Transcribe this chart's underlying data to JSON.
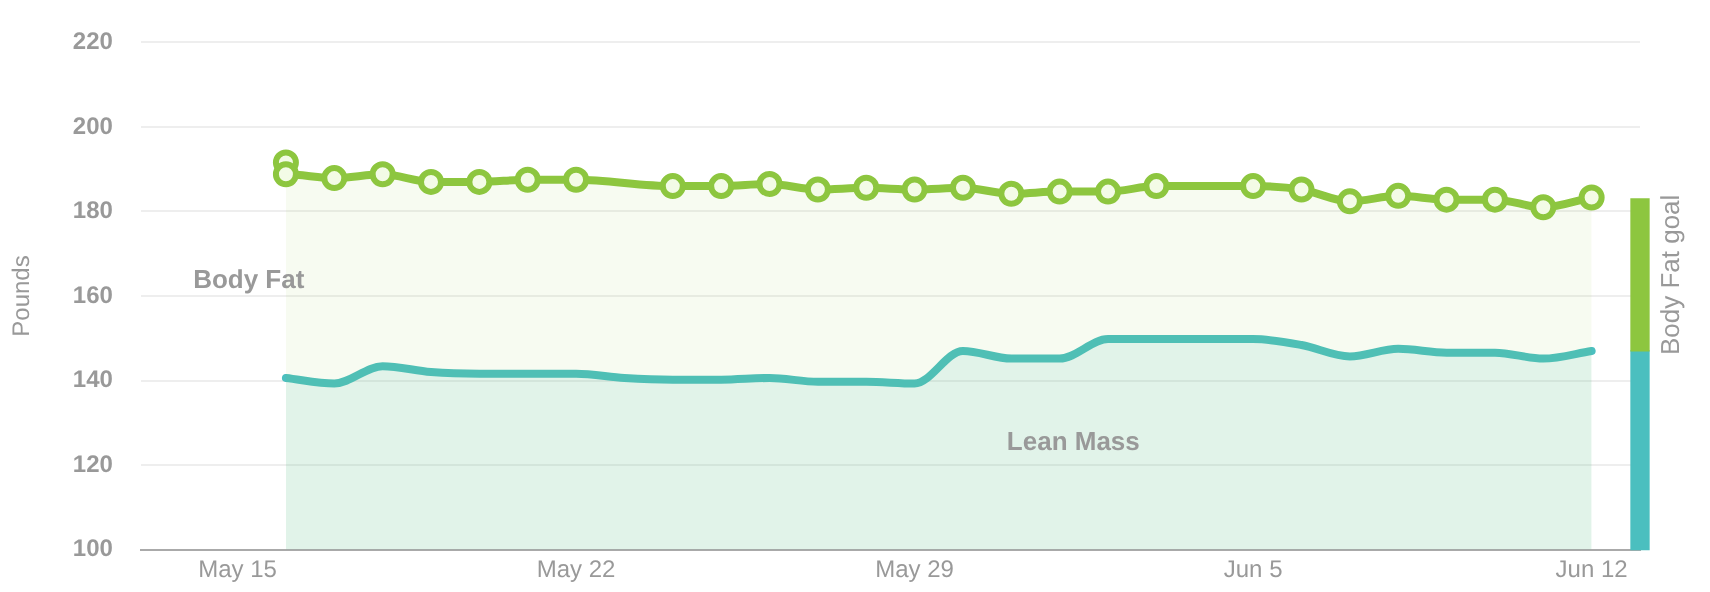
{
  "chart_data": {
    "type": "area",
    "ylabel": "Pounds",
    "xlim": [
      "--05-13",
      "--06-13"
    ],
    "xticks": [
      {
        "value": "--05-15",
        "label": "May 15"
      },
      {
        "value": "--05-22",
        "label": "May 22"
      },
      {
        "value": "--05-29",
        "label": "May 29"
      },
      {
        "value": "--06-05",
        "label": "Jun 5"
      },
      {
        "value": "--06-12",
        "label": "Jun 12"
      }
    ],
    "ylim": [
      100,
      220
    ],
    "yticks": [
      100,
      120,
      140,
      160,
      180,
      200,
      220
    ],
    "grid": "y",
    "legend": false,
    "series": [
      {
        "name": "Body Fat",
        "color": "#8dc63f",
        "marker": "circle",
        "x": [
          "--05-16",
          "--05-16",
          "--05-17",
          "--05-18",
          "--05-19",
          "--05-20",
          "--05-21",
          "--05-22",
          "--05-24",
          "--05-25",
          "--05-26",
          "--05-27",
          "--05-28",
          "--05-29",
          "--05-30",
          "--05-31",
          "--06-01",
          "--06-02",
          "--06-03",
          "--06-05",
          "--06-06",
          "--06-07",
          "--06-08",
          "--06-09",
          "--06-10",
          "--06-11",
          "--06-12"
        ],
        "values": [
          191.6,
          188.8,
          187.9,
          188.8,
          187,
          187,
          187.5,
          187.5,
          186,
          186,
          186.5,
          185.2,
          185.6,
          185.2,
          185.6,
          184.2,
          184.7,
          184.7,
          186,
          186,
          185.2,
          182.4,
          183.7,
          182.8,
          182.8,
          181,
          183.3
        ]
      },
      {
        "name": "Lean Mass",
        "color": "#4bbfbf",
        "marker": "none",
        "x": [
          "--05-16",
          "--05-17",
          "--05-18",
          "--05-19",
          "--05-20",
          "--05-21",
          "--05-22",
          "--05-23",
          "--05-24",
          "--05-25",
          "--05-26",
          "--05-27",
          "--05-28",
          "--05-29",
          "--05-30",
          "--05-31",
          "--06-01",
          "--06-02",
          "--06-03",
          "--06-05",
          "--06-06",
          "--06-07",
          "--06-08",
          "--06-09",
          "--06-10",
          "--06-11",
          "--06-12"
        ],
        "values": [
          140.6,
          139.3,
          143.4,
          142,
          141.6,
          141.6,
          141.6,
          140.6,
          140.2,
          140.2,
          140.6,
          139.7,
          139.7,
          139.3,
          147,
          145.2,
          145.2,
          149.8,
          149.8,
          149.8,
          148.4,
          145.7,
          147.5,
          146.6,
          146.6,
          145.2,
          147
        ]
      },
      {
        "type": "bar",
        "name": "Body Fat goal",
        "color": "#8dc63f",
        "x": [
          "--06-13"
        ],
        "base": [
          147
        ],
        "values": [
          36
        ]
      },
      {
        "type": "bar",
        "color": "#4bbfbf",
        "x": [
          "--06-13"
        ],
        "base": [
          100
        ],
        "values": [
          47
        ]
      }
    ]
  }
}
